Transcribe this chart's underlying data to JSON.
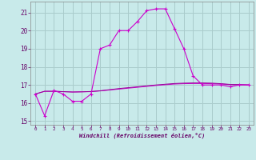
{
  "xlabel": "Windchill (Refroidissement éolien,°C)",
  "background_color": "#c8eaea",
  "grid_color": "#aacccc",
  "line_color": "#cc00cc",
  "line_color2": "#990099",
  "xlim": [
    -0.5,
    23.5
  ],
  "ylim": [
    14.8,
    21.6
  ],
  "yticks": [
    15,
    16,
    17,
    18,
    19,
    20,
    21
  ],
  "xticks": [
    0,
    1,
    2,
    3,
    4,
    5,
    6,
    7,
    8,
    9,
    10,
    11,
    12,
    13,
    14,
    15,
    16,
    17,
    18,
    19,
    20,
    21,
    22,
    23
  ],
  "series1_x": [
    0,
    1,
    2,
    3,
    4,
    5,
    6,
    7,
    8,
    9,
    10,
    11,
    12,
    13,
    14,
    15,
    16,
    17,
    18,
    19,
    20,
    21,
    22,
    23
  ],
  "series1_y": [
    16.5,
    15.3,
    16.7,
    16.5,
    16.1,
    16.1,
    16.5,
    19.0,
    19.2,
    20.0,
    20.0,
    20.5,
    21.1,
    21.2,
    21.2,
    20.1,
    19.0,
    17.5,
    17.0,
    17.0,
    17.0,
    16.9,
    17.0,
    17.0
  ],
  "series2_x": [
    0,
    1,
    2,
    3,
    4,
    5,
    6,
    7,
    8,
    9,
    10,
    11,
    12,
    13,
    14,
    15,
    16,
    17,
    18,
    19,
    20,
    21,
    22,
    23
  ],
  "series2_y": [
    16.5,
    16.65,
    16.65,
    16.63,
    16.61,
    16.62,
    16.63,
    16.67,
    16.72,
    16.77,
    16.82,
    16.87,
    16.92,
    16.97,
    17.01,
    17.05,
    17.07,
    17.08,
    17.08,
    17.07,
    17.05,
    17.02,
    17.01,
    17.0
  ],
  "series3_x": [
    0,
    1,
    2,
    3,
    4,
    5,
    6,
    7,
    8,
    9,
    10,
    11,
    12,
    13,
    14,
    15,
    16,
    17,
    18,
    19,
    20,
    21,
    22,
    23
  ],
  "series3_y": [
    16.5,
    16.65,
    16.65,
    16.63,
    16.61,
    16.62,
    16.64,
    16.68,
    16.74,
    16.8,
    16.85,
    16.9,
    16.95,
    17.0,
    17.04,
    17.08,
    17.1,
    17.11,
    17.11,
    17.1,
    17.07,
    17.03,
    17.02,
    17.0
  ]
}
